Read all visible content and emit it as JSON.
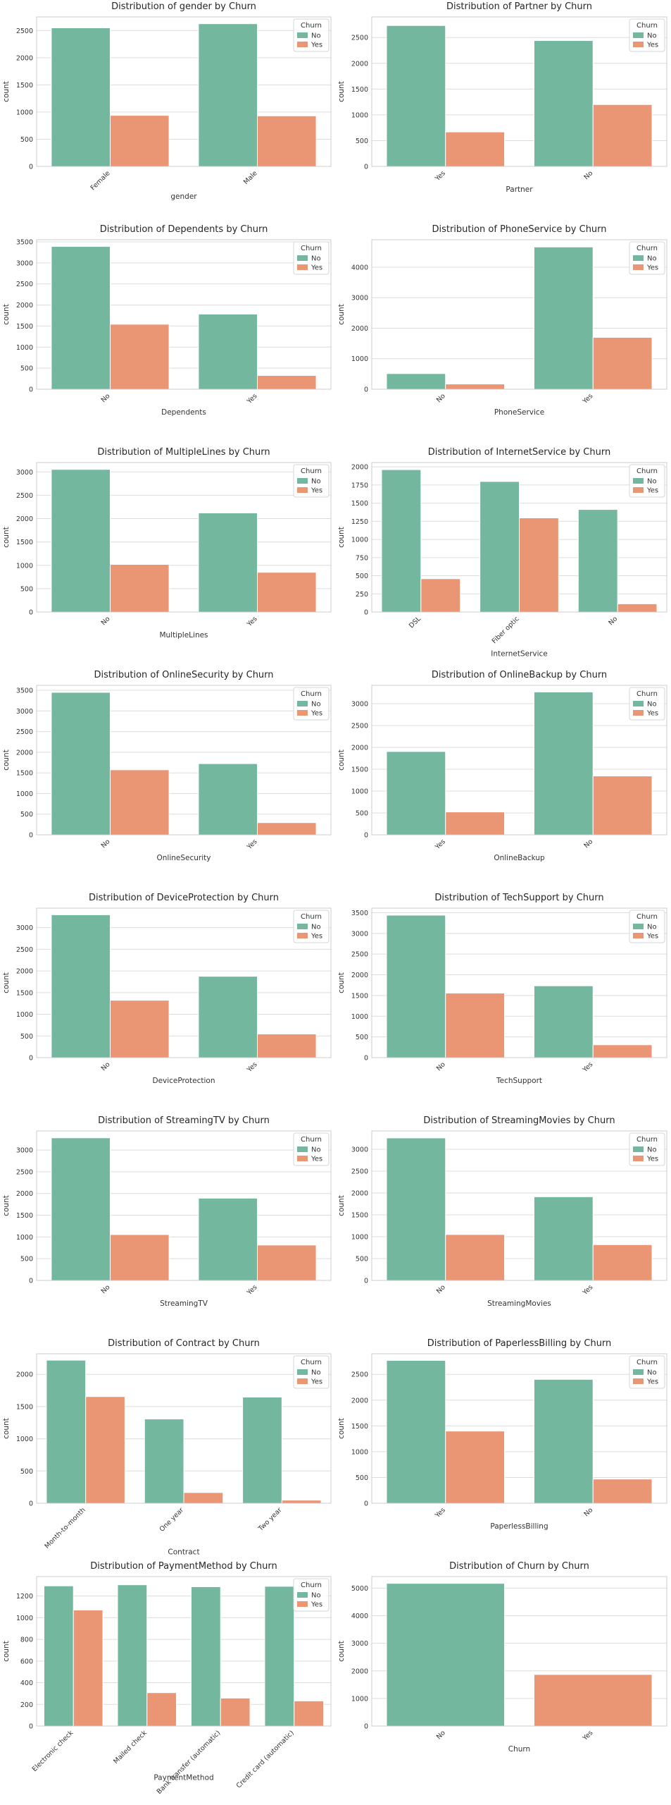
{
  "colors": {
    "no": "#73b79f",
    "yes": "#ea9674",
    "grid": "#dcdcdc",
    "frame": "#cccccc"
  },
  "chart_data": [
    {
      "type": "bar",
      "title": "Distribution of gender by Churn",
      "xlabel": "gender",
      "ylabel": "count",
      "categories": [
        "Female",
        "Male"
      ],
      "ylim": [
        0,
        2750
      ],
      "yticks": [
        0,
        500,
        1000,
        1500,
        2000,
        2500
      ],
      "rotate": 45,
      "legend": "top-right",
      "legend_title": "Churn",
      "series": [
        {
          "name": "No",
          "values": [
            2549,
            2625
          ]
        },
        {
          "name": "Yes",
          "values": [
            939,
            930
          ]
        }
      ]
    },
    {
      "type": "bar",
      "title": "Distribution of Partner by Churn",
      "xlabel": "Partner",
      "ylabel": "count",
      "categories": [
        "Yes",
        "No"
      ],
      "ylim": [
        0,
        2900
      ],
      "yticks": [
        0,
        500,
        1000,
        1500,
        2000,
        2500
      ],
      "rotate": 45,
      "legend": "top-right",
      "legend_title": "Churn",
      "series": [
        {
          "name": "No",
          "values": [
            2733,
            2441
          ]
        },
        {
          "name": "Yes",
          "values": [
            669,
            1200
          ]
        }
      ]
    },
    {
      "type": "bar",
      "title": "Distribution of Dependents by Churn",
      "xlabel": "Dependents",
      "ylabel": "count",
      "categories": [
        "No",
        "Yes"
      ],
      "ylim": [
        0,
        3550
      ],
      "yticks": [
        0,
        500,
        1000,
        1500,
        2000,
        2500,
        3000,
        3500
      ],
      "rotate": 45,
      "legend": "top-right",
      "legend_title": "Churn",
      "series": [
        {
          "name": "No",
          "values": [
            3390,
            1784
          ]
        },
        {
          "name": "Yes",
          "values": [
            1543,
            326
          ]
        }
      ]
    },
    {
      "type": "bar",
      "title": "Distribution of PhoneService by Churn",
      "xlabel": "PhoneService",
      "ylabel": "count",
      "categories": [
        "No",
        "Yes"
      ],
      "ylim": [
        0,
        4900
      ],
      "yticks": [
        0,
        1000,
        2000,
        3000,
        4000
      ],
      "rotate": 45,
      "legend": "top-right",
      "legend_title": "Churn",
      "series": [
        {
          "name": "No",
          "values": [
            512,
            4662
          ]
        },
        {
          "name": "Yes",
          "values": [
            170,
            1699
          ]
        }
      ]
    },
    {
      "type": "bar",
      "title": "Distribution of MultipleLines by Churn",
      "xlabel": "MultipleLines",
      "ylabel": "count",
      "categories": [
        "No",
        "Yes"
      ],
      "ylim": [
        0,
        3200
      ],
      "yticks": [
        0,
        500,
        1000,
        1500,
        2000,
        2500,
        3000
      ],
      "rotate": 45,
      "legend": "top-right",
      "legend_title": "Churn",
      "series": [
        {
          "name": "No",
          "values": [
            3053,
            2121
          ]
        },
        {
          "name": "Yes",
          "values": [
            1019,
            850
          ]
        }
      ]
    },
    {
      "type": "bar",
      "title": "Distribution of InternetService by Churn",
      "xlabel": "InternetService",
      "ylabel": "count",
      "categories": [
        "DSL",
        "Fiber optic",
        "No"
      ],
      "ylim": [
        0,
        2060
      ],
      "yticks": [
        0,
        250,
        500,
        750,
        1000,
        1250,
        1500,
        1750,
        2000
      ],
      "rotate": 45,
      "legend": "top-right",
      "legend_title": "Churn",
      "series": [
        {
          "name": "No",
          "values": [
            1962,
            1799,
            1413
          ]
        },
        {
          "name": "Yes",
          "values": [
            459,
            1297,
            113
          ]
        }
      ]
    },
    {
      "type": "bar",
      "title": "Distribution of OnlineSecurity by Churn",
      "xlabel": "OnlineSecurity",
      "ylabel": "count",
      "categories": [
        "No",
        "Yes"
      ],
      "ylim": [
        0,
        3620
      ],
      "yticks": [
        0,
        500,
        1000,
        1500,
        2000,
        2500,
        3000,
        3500
      ],
      "rotate": 45,
      "legend": "top-right",
      "legend_title": "Churn",
      "series": [
        {
          "name": "No",
          "values": [
            3450,
            1724
          ]
        },
        {
          "name": "Yes",
          "values": [
            1574,
            295
          ]
        }
      ]
    },
    {
      "type": "bar",
      "title": "Distribution of OnlineBackup by Churn",
      "xlabel": "OnlineBackup",
      "ylabel": "count",
      "categories": [
        "Yes",
        "No"
      ],
      "ylim": [
        0,
        3420
      ],
      "yticks": [
        0,
        500,
        1000,
        1500,
        2000,
        2500,
        3000
      ],
      "rotate": 45,
      "legend": "top-right",
      "legend_title": "Churn",
      "series": [
        {
          "name": "No",
          "values": [
            1906,
            3268
          ]
        },
        {
          "name": "Yes",
          "values": [
            523,
            1346
          ]
        }
      ]
    },
    {
      "type": "bar",
      "title": "Distribution of DeviceProtection by Churn",
      "xlabel": "DeviceProtection",
      "ylabel": "count",
      "categories": [
        "No",
        "Yes"
      ],
      "ylim": [
        0,
        3450
      ],
      "yticks": [
        0,
        500,
        1000,
        1500,
        2000,
        2500,
        3000
      ],
      "rotate": 45,
      "legend": "top-right",
      "legend_title": "Churn",
      "series": [
        {
          "name": "No",
          "values": [
            3297,
            1877
          ]
        },
        {
          "name": "Yes",
          "values": [
            1324,
            545
          ]
        }
      ]
    },
    {
      "type": "bar",
      "title": "Distribution of TechSupport by Churn",
      "xlabel": "TechSupport",
      "ylabel": "count",
      "categories": [
        "No",
        "Yes"
      ],
      "ylim": [
        0,
        3610
      ],
      "yticks": [
        0,
        500,
        1000,
        1500,
        2000,
        2500,
        3000,
        3500
      ],
      "rotate": 45,
      "legend": "top-right",
      "legend_title": "Churn",
      "series": [
        {
          "name": "No",
          "values": [
            3440,
            1734
          ]
        },
        {
          "name": "Yes",
          "values": [
            1559,
            310
          ]
        }
      ]
    },
    {
      "type": "bar",
      "title": "Distribution of StreamingTV by Churn",
      "xlabel": "StreamingTV",
      "ylabel": "count",
      "categories": [
        "No",
        "Yes"
      ],
      "ylim": [
        0,
        3440
      ],
      "yticks": [
        0,
        500,
        1000,
        1500,
        2000,
        2500,
        3000
      ],
      "rotate": 45,
      "legend": "top-right",
      "legend_title": "Churn",
      "series": [
        {
          "name": "No",
          "values": [
            3281,
            1893
          ]
        },
        {
          "name": "Yes",
          "values": [
            1055,
            814
          ]
        }
      ]
    },
    {
      "type": "bar",
      "title": "Distribution of StreamingMovies by Churn",
      "xlabel": "StreamingMovies",
      "ylabel": "count",
      "categories": [
        "No",
        "Yes"
      ],
      "ylim": [
        0,
        3420
      ],
      "yticks": [
        0,
        500,
        1000,
        1500,
        2000,
        2500,
        3000
      ],
      "rotate": 45,
      "legend": "top-right",
      "legend_title": "Churn",
      "series": [
        {
          "name": "No",
          "values": [
            3260,
            1914
          ]
        },
        {
          "name": "Yes",
          "values": [
            1051,
            818
          ]
        }
      ]
    },
    {
      "type": "bar",
      "title": "Distribution of Contract by Churn",
      "xlabel": "Contract",
      "ylabel": "count",
      "categories": [
        "Month-to-month",
        "One year",
        "Two year"
      ],
      "ylim": [
        0,
        2320
      ],
      "yticks": [
        0,
        500,
        1000,
        1500,
        2000
      ],
      "rotate": 45,
      "legend": "top-right",
      "legend_title": "Churn",
      "series": [
        {
          "name": "No",
          "values": [
            2220,
            1307,
            1647
          ]
        },
        {
          "name": "Yes",
          "values": [
            1655,
            166,
            48
          ]
        }
      ]
    },
    {
      "type": "bar",
      "title": "Distribution of PaperlessBilling by Churn",
      "xlabel": "PaperlessBilling",
      "ylabel": "count",
      "categories": [
        "Yes",
        "No"
      ],
      "ylim": [
        0,
        2900
      ],
      "yticks": [
        0,
        500,
        1000,
        1500,
        2000,
        2500
      ],
      "rotate": 45,
      "legend": "top-right",
      "legend_title": "Churn",
      "series": [
        {
          "name": "No",
          "values": [
            2771,
            2403
          ]
        },
        {
          "name": "Yes",
          "values": [
            1400,
            469
          ]
        }
      ]
    },
    {
      "type": "bar",
      "title": "Distribution of PaymentMethod by Churn",
      "xlabel": "PaymentMethod",
      "ylabel": "count",
      "categories": [
        "Electronic check",
        "Mailed check",
        "Bank transfer (automatic)",
        "Credit card (automatic)"
      ],
      "ylim": [
        0,
        1380
      ],
      "yticks": [
        0,
        200,
        400,
        600,
        800,
        1000,
        1200
      ],
      "rotate": 45,
      "legend": "top-right",
      "legend_title": "Churn",
      "series": [
        {
          "name": "No",
          "values": [
            1294,
            1304,
            1286,
            1290
          ]
        },
        {
          "name": "Yes",
          "values": [
            1071,
            308,
            258,
            232
          ]
        }
      ]
    },
    {
      "type": "bar",
      "title": "Distribution of Churn by Churn",
      "xlabel": "Churn",
      "ylabel": "count",
      "categories": [
        "No",
        "Yes"
      ],
      "ylim": [
        0,
        5420
      ],
      "yticks": [
        0,
        1000,
        2000,
        3000,
        4000,
        5000
      ],
      "rotate": 45,
      "dodge": false,
      "legend": "none",
      "series": [
        {
          "name": "No",
          "values": [
            5174,
            null
          ]
        },
        {
          "name": "Yes",
          "values": [
            null,
            1869
          ]
        }
      ]
    }
  ]
}
